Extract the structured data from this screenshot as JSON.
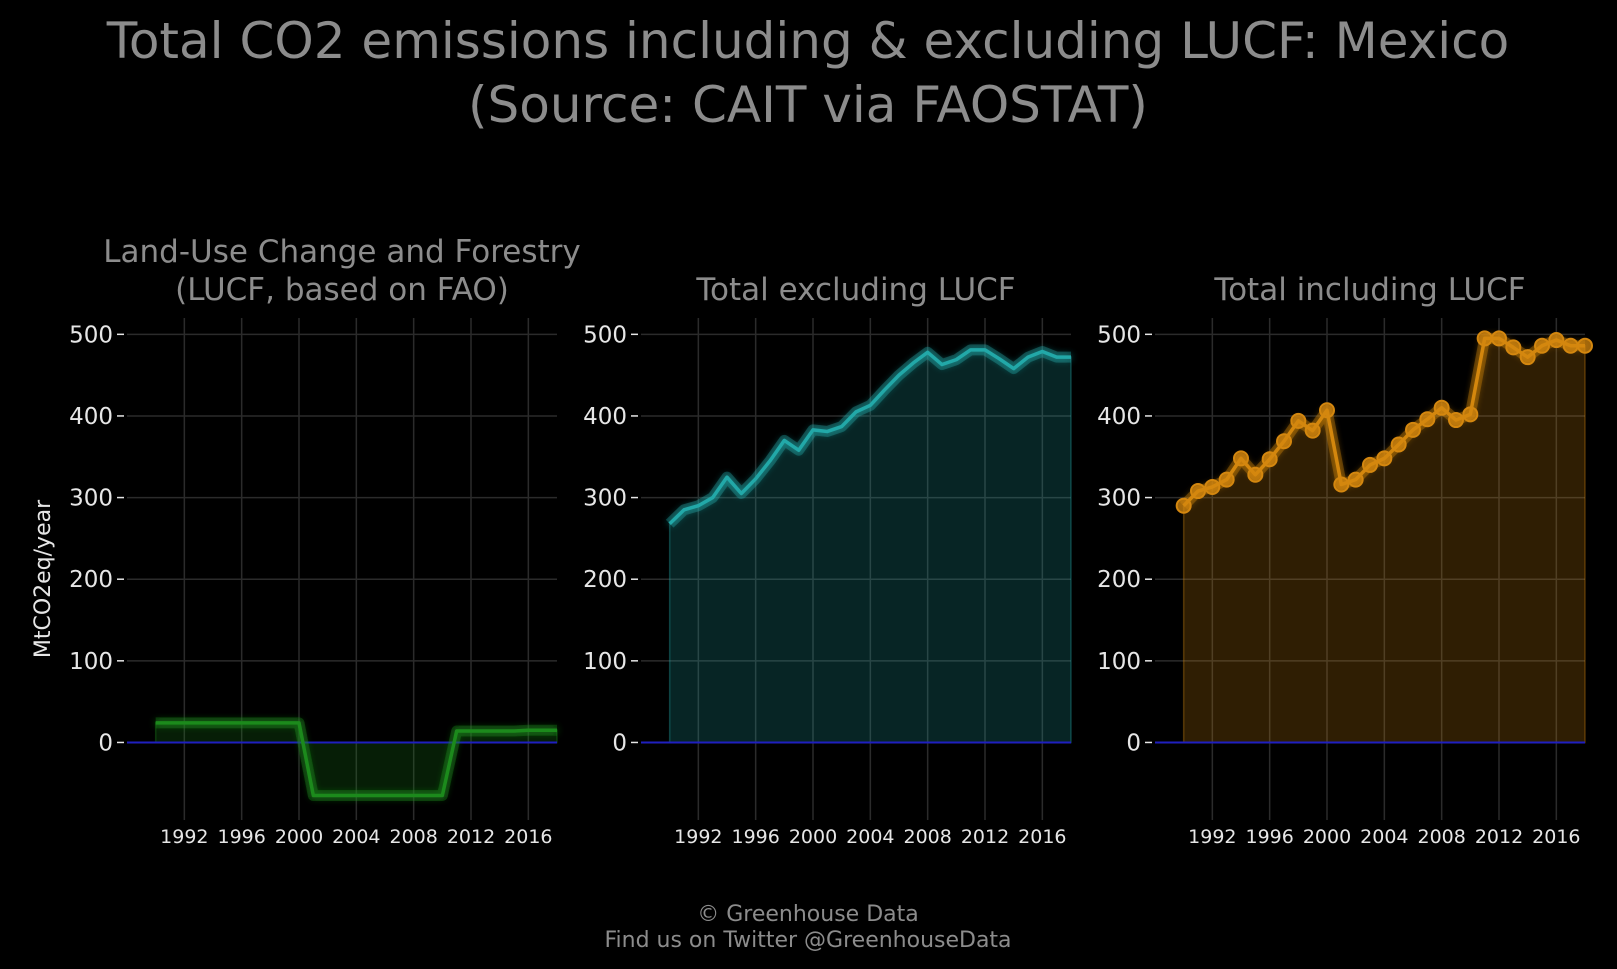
{
  "title": {
    "line1": "Total CO2 emissions including & excluding LUCF: Mexico",
    "line2": "(Source: CAIT via FAOSTAT)"
  },
  "footer": {
    "line1": "© Greenhouse Data",
    "line2": "Find us on Twitter @GreenhouseData"
  },
  "colors": {
    "background": "#000000",
    "grid": "#2b2b2b",
    "title": "#8c8c8c",
    "tick_text": "#e6e6e6",
    "zero_line": "#1f1fbf",
    "lucf": "#1c8a1c",
    "excl": "#22a8a8",
    "incl": "#d4870f"
  },
  "chart_data": [
    {
      "type": "area",
      "title_lines": [
        "Land-Use Change and Forestry",
        "(LUCF, based on FAO)"
      ],
      "ylabel": "MtCO2eq/year",
      "xlabel": "",
      "x": [
        1990,
        1991,
        1992,
        1993,
        1994,
        1995,
        1996,
        1997,
        1998,
        1999,
        2000,
        2001,
        2002,
        2003,
        2004,
        2005,
        2006,
        2007,
        2008,
        2009,
        2010,
        2011,
        2012,
        2013,
        2014,
        2015,
        2016,
        2017,
        2018
      ],
      "values": [
        24,
        24,
        24,
        24,
        24,
        24,
        24,
        24,
        24,
        24,
        24,
        -65,
        -65,
        -65,
        -65,
        -65,
        -65,
        -65,
        -65,
        -65,
        -65,
        14,
        14,
        14,
        14,
        14,
        15,
        15,
        15
      ],
      "markers": false,
      "xticks": [
        1992,
        1996,
        2000,
        2004,
        2008,
        2012,
        2016
      ],
      "yticks": [
        0,
        100,
        200,
        300,
        400,
        500
      ],
      "xlim": [
        1988,
        2018
      ],
      "ylim": [
        -95,
        520
      ],
      "grid": true,
      "color_key": "lucf"
    },
    {
      "type": "area",
      "title_lines": [
        "Total excluding LUCF"
      ],
      "ylabel": "",
      "xlabel": "",
      "x": [
        1990,
        1991,
        1992,
        1993,
        1994,
        1995,
        1996,
        1997,
        1998,
        1999,
        2000,
        2001,
        2002,
        2003,
        2004,
        2005,
        2006,
        2007,
        2008,
        2009,
        2010,
        2011,
        2012,
        2013,
        2014,
        2015,
        2016,
        2017,
        2018
      ],
      "values": [
        268,
        285,
        290,
        300,
        325,
        305,
        323,
        345,
        370,
        358,
        383,
        381,
        387,
        405,
        413,
        432,
        450,
        465,
        478,
        463,
        469,
        481,
        481,
        470,
        458,
        472,
        479,
        472,
        472
      ],
      "markers": false,
      "xticks": [
        1992,
        1996,
        2000,
        2004,
        2008,
        2012,
        2016
      ],
      "yticks": [
        0,
        100,
        200,
        300,
        400,
        500
      ],
      "xlim": [
        1988,
        2018
      ],
      "ylim": [
        -95,
        520
      ],
      "grid": true,
      "color_key": "excl"
    },
    {
      "type": "area",
      "title_lines": [
        "Total including LUCF"
      ],
      "ylabel": "",
      "xlabel": "",
      "x": [
        1990,
        1991,
        1992,
        1993,
        1994,
        1995,
        1996,
        1997,
        1998,
        1999,
        2000,
        2001,
        2002,
        2003,
        2004,
        2005,
        2006,
        2007,
        2008,
        2009,
        2010,
        2011,
        2012,
        2013,
        2014,
        2015,
        2016,
        2017,
        2018
      ],
      "values": [
        290,
        308,
        313,
        322,
        348,
        328,
        347,
        369,
        394,
        382,
        407,
        316,
        322,
        340,
        348,
        365,
        383,
        396,
        410,
        395,
        402,
        495,
        495,
        484,
        472,
        486,
        493,
        486,
        486
      ],
      "markers": true,
      "xticks": [
        1992,
        1996,
        2000,
        2004,
        2008,
        2012,
        2016
      ],
      "yticks": [
        0,
        100,
        200,
        300,
        400,
        500
      ],
      "xlim": [
        1988,
        2018
      ],
      "ylim": [
        -95,
        520
      ],
      "grid": true,
      "color_key": "incl"
    }
  ]
}
